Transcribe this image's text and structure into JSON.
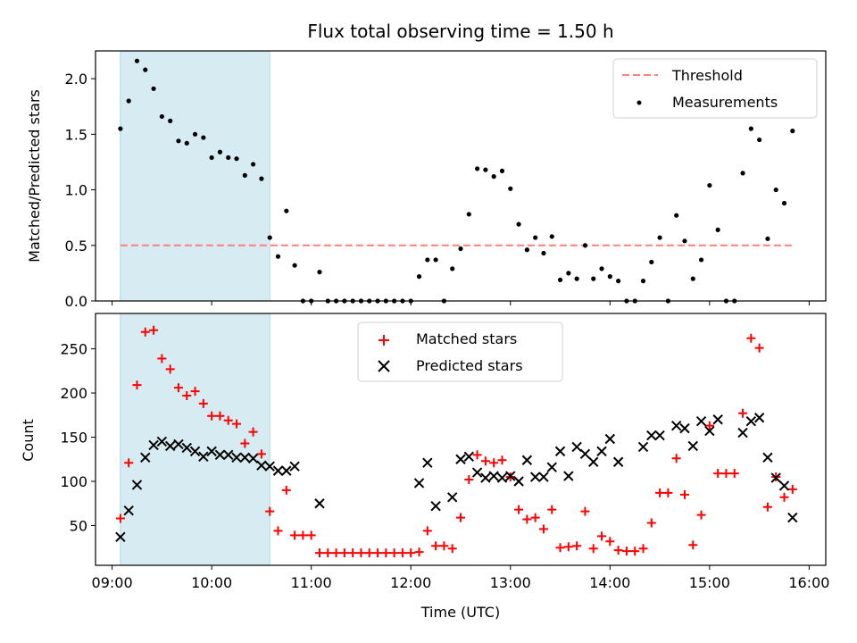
{
  "chart_data": [
    {
      "type": "scatter",
      "title": "Flux total observing time = 1.50 h",
      "xlabel": "",
      "ylabel": "Matched/Predicted stars",
      "xlim": [
        "09:00",
        "16:00"
      ],
      "ylim": [
        0,
        2.25
      ],
      "yticks": [
        0.0,
        0.5,
        1.0,
        1.5,
        2.0
      ],
      "ytick_labels": [
        "0.0",
        "0.5",
        "1.0",
        "1.5",
        "2.0"
      ],
      "shaded_interval": [
        "09:05",
        "10:35"
      ],
      "shade_color": "#add8e6",
      "legend_position": "upper right",
      "series": [
        {
          "name": "Threshold",
          "style": "dashed-line",
          "color": "#ff7f7f",
          "points": [
            [
              "09:05",
              0.5
            ],
            [
              "15:50",
              0.5
            ]
          ]
        },
        {
          "name": "Measurements",
          "style": "dot",
          "color": "#000000",
          "points": [
            [
              "09:05",
              1.55
            ],
            [
              "09:10",
              1.8
            ],
            [
              "09:15",
              2.16
            ],
            [
              "09:20",
              2.08
            ],
            [
              "09:25",
              1.91
            ],
            [
              "09:30",
              1.66
            ],
            [
              "09:35",
              1.62
            ],
            [
              "09:40",
              1.44
            ],
            [
              "09:45",
              1.42
            ],
            [
              "09:50",
              1.5
            ],
            [
              "09:55",
              1.47
            ],
            [
              "10:00",
              1.29
            ],
            [
              "10:05",
              1.34
            ],
            [
              "10:10",
              1.29
            ],
            [
              "10:15",
              1.28
            ],
            [
              "10:20",
              1.13
            ],
            [
              "10:25",
              1.23
            ],
            [
              "10:30",
              1.1
            ],
            [
              "10:35",
              0.57
            ],
            [
              "10:40",
              0.4
            ],
            [
              "10:45",
              0.81
            ],
            [
              "10:50",
              0.32
            ],
            [
              "10:55",
              0.0
            ],
            [
              "11:00",
              0.0
            ],
            [
              "11:05",
              0.26
            ],
            [
              "11:10",
              0.0
            ],
            [
              "11:15",
              0.0
            ],
            [
              "11:20",
              0.0
            ],
            [
              "11:25",
              0.0
            ],
            [
              "11:30",
              0.0
            ],
            [
              "11:35",
              0.0
            ],
            [
              "11:40",
              0.0
            ],
            [
              "11:45",
              0.0
            ],
            [
              "11:50",
              0.0
            ],
            [
              "11:55",
              0.0
            ],
            [
              "12:00",
              0.0
            ],
            [
              "12:05",
              0.22
            ],
            [
              "12:10",
              0.37
            ],
            [
              "12:15",
              0.37
            ],
            [
              "12:20",
              0.0
            ],
            [
              "12:25",
              0.29
            ],
            [
              "12:30",
              0.47
            ],
            [
              "12:35",
              0.78
            ],
            [
              "12:40",
              1.19
            ],
            [
              "12:45",
              1.18
            ],
            [
              "12:50",
              1.12
            ],
            [
              "12:55",
              1.17
            ],
            [
              "13:00",
              1.01
            ],
            [
              "13:05",
              0.69
            ],
            [
              "13:10",
              0.46
            ],
            [
              "13:15",
              0.57
            ],
            [
              "13:20",
              0.43
            ],
            [
              "13:25",
              0.58
            ],
            [
              "13:30",
              0.19
            ],
            [
              "13:35",
              0.25
            ],
            [
              "13:40",
              0.2
            ],
            [
              "13:45",
              0.5
            ],
            [
              "13:50",
              0.2
            ],
            [
              "13:55",
              0.29
            ],
            [
              "14:00",
              0.22
            ],
            [
              "14:05",
              0.18
            ],
            [
              "14:10",
              0.0
            ],
            [
              "14:15",
              0.0
            ],
            [
              "14:20",
              0.18
            ],
            [
              "14:25",
              0.35
            ],
            [
              "14:30",
              0.57
            ],
            [
              "14:35",
              0.0
            ],
            [
              "14:40",
              0.77
            ],
            [
              "14:45",
              0.54
            ],
            [
              "14:50",
              0.2
            ],
            [
              "14:55",
              0.37
            ],
            [
              "15:00",
              1.04
            ],
            [
              "15:05",
              0.64
            ],
            [
              "15:10",
              0.0
            ],
            [
              "15:15",
              0.0
            ],
            [
              "15:20",
              1.15
            ],
            [
              "15:25",
              1.55
            ],
            [
              "15:30",
              1.45
            ],
            [
              "15:35",
              0.56
            ],
            [
              "15:40",
              1.0
            ],
            [
              "15:45",
              0.88
            ],
            [
              "15:50",
              1.53
            ]
          ]
        }
      ]
    },
    {
      "type": "scatter",
      "title": "",
      "xlabel": "Time (UTC)",
      "ylabel": "Count",
      "xlim": [
        "09:00",
        "16:00"
      ],
      "ylim": [
        5,
        290
      ],
      "yticks": [
        50,
        100,
        150,
        200,
        250
      ],
      "ytick_labels": [
        "50",
        "100",
        "150",
        "200",
        "250"
      ],
      "xticks": [
        "09:00",
        "10:00",
        "11:00",
        "12:00",
        "13:00",
        "14:00",
        "15:00",
        "16:00"
      ],
      "xtick_labels": [
        "09:00",
        "10:00",
        "11:00",
        "12:00",
        "13:00",
        "14:00",
        "15:00",
        "16:00"
      ],
      "shaded_interval": [
        "09:05",
        "10:35"
      ],
      "shade_color": "#add8e6",
      "legend_position": "upper center",
      "series": [
        {
          "name": "Matched stars",
          "style": "plus",
          "color": "#ff0000",
          "points": [
            [
              "09:05",
              58
            ],
            [
              "09:10",
              121
            ],
            [
              "09:15",
              209
            ],
            [
              "09:20",
              269
            ],
            [
              "09:25",
              271
            ],
            [
              "09:30",
              239
            ],
            [
              "09:35",
              227
            ],
            [
              "09:40",
              206
            ],
            [
              "09:45",
              197
            ],
            [
              "09:50",
              202
            ],
            [
              "09:55",
              188
            ],
            [
              "10:00",
              174
            ],
            [
              "10:05",
              174
            ],
            [
              "10:10",
              169
            ],
            [
              "10:15",
              165
            ],
            [
              "10:20",
              143
            ],
            [
              "10:25",
              156
            ],
            [
              "10:30",
              131
            ],
            [
              "10:35",
              66
            ],
            [
              "10:40",
              44
            ],
            [
              "10:45",
              90
            ],
            [
              "10:50",
              39
            ],
            [
              "10:55",
              39
            ],
            [
              "11:00",
              39
            ],
            [
              "11:05",
              19
            ],
            [
              "11:10",
              19
            ],
            [
              "11:15",
              19
            ],
            [
              "11:20",
              19
            ],
            [
              "11:25",
              19
            ],
            [
              "11:30",
              19
            ],
            [
              "11:35",
              19
            ],
            [
              "11:40",
              19
            ],
            [
              "11:45",
              19
            ],
            [
              "11:50",
              19
            ],
            [
              "11:55",
              19
            ],
            [
              "12:00",
              19
            ],
            [
              "12:05",
              20
            ],
            [
              "12:10",
              44
            ],
            [
              "12:15",
              27
            ],
            [
              "12:20",
              27
            ],
            [
              "12:25",
              24
            ],
            [
              "12:30",
              59
            ],
            [
              "12:35",
              102
            ],
            [
              "12:40",
              130
            ],
            [
              "12:45",
              123
            ],
            [
              "12:50",
              121
            ],
            [
              "12:55",
              124
            ],
            [
              "13:00",
              105
            ],
            [
              "13:05",
              68
            ],
            [
              "13:10",
              57
            ],
            [
              "13:15",
              59
            ],
            [
              "13:20",
              46
            ],
            [
              "13:25",
              68
            ],
            [
              "13:30",
              25
            ],
            [
              "13:35",
              26
            ],
            [
              "13:40",
              27
            ],
            [
              "13:45",
              66
            ],
            [
              "13:50",
              24
            ],
            [
              "13:55",
              38
            ],
            [
              "14:00",
              32
            ],
            [
              "14:05",
              22
            ],
            [
              "14:10",
              21
            ],
            [
              "14:15",
              21
            ],
            [
              "14:20",
              24
            ],
            [
              "14:25",
              53
            ],
            [
              "14:30",
              87
            ],
            [
              "14:35",
              87
            ],
            [
              "14:40",
              126
            ],
            [
              "14:45",
              85
            ],
            [
              "14:50",
              28
            ],
            [
              "14:55",
              62
            ],
            [
              "15:00",
              163
            ],
            [
              "15:05",
              109
            ],
            [
              "15:10",
              109
            ],
            [
              "15:15",
              109
            ],
            [
              "15:20",
              177
            ],
            [
              "15:25",
              262
            ],
            [
              "15:30",
              251
            ],
            [
              "15:35",
              71
            ],
            [
              "15:40",
              105
            ],
            [
              "15:45",
              82
            ],
            [
              "15:50",
              91
            ]
          ]
        },
        {
          "name": "Predicted stars",
          "style": "x",
          "color": "#000000",
          "points": [
            [
              "09:05",
              37
            ],
            [
              "09:10",
              67
            ],
            [
              "09:15",
              96
            ],
            [
              "09:20",
              127
            ],
            [
              "09:25",
              141
            ],
            [
              "09:30",
              145
            ],
            [
              "09:35",
              140
            ],
            [
              "09:40",
              142
            ],
            [
              "09:45",
              138
            ],
            [
              "09:50",
              134
            ],
            [
              "09:55",
              128
            ],
            [
              "10:00",
              134
            ],
            [
              "10:05",
              130
            ],
            [
              "10:10",
              130
            ],
            [
              "10:15",
              127
            ],
            [
              "10:20",
              127
            ],
            [
              "10:25",
              126
            ],
            [
              "10:30",
              118
            ],
            [
              "10:35",
              117
            ],
            [
              "10:40",
              112
            ],
            [
              "10:45",
              112
            ],
            [
              "10:50",
              117
            ],
            [
              "11:05",
              75
            ],
            [
              "12:05",
              98
            ],
            [
              "12:10",
              121
            ],
            [
              "12:15",
              72
            ],
            [
              "12:25",
              82
            ],
            [
              "12:30",
              125
            ],
            [
              "12:35",
              128
            ],
            [
              "12:40",
              110
            ],
            [
              "12:45",
              104
            ],
            [
              "12:50",
              106
            ],
            [
              "12:55",
              104
            ],
            [
              "13:00",
              106
            ],
            [
              "13:05",
              100
            ],
            [
              "13:10",
              124
            ],
            [
              "13:15",
              105
            ],
            [
              "13:20",
              105
            ],
            [
              "13:25",
              116
            ],
            [
              "13:30",
              134
            ],
            [
              "13:35",
              106
            ],
            [
              "13:40",
              139
            ],
            [
              "13:45",
              131
            ],
            [
              "13:50",
              122
            ],
            [
              "13:55",
              134
            ],
            [
              "14:00",
              148
            ],
            [
              "14:05",
              122
            ],
            [
              "14:20",
              139
            ],
            [
              "14:25",
              152
            ],
            [
              "14:30",
              152
            ],
            [
              "14:40",
              163
            ],
            [
              "14:45",
              160
            ],
            [
              "14:50",
              140
            ],
            [
              "14:55",
              168
            ],
            [
              "15:00",
              157
            ],
            [
              "15:05",
              170
            ],
            [
              "15:20",
              155
            ],
            [
              "15:25",
              168
            ],
            [
              "15:30",
              172
            ],
            [
              "15:35",
              127
            ],
            [
              "15:40",
              104
            ],
            [
              "15:45",
              95
            ],
            [
              "15:50",
              59
            ]
          ]
        }
      ]
    }
  ]
}
